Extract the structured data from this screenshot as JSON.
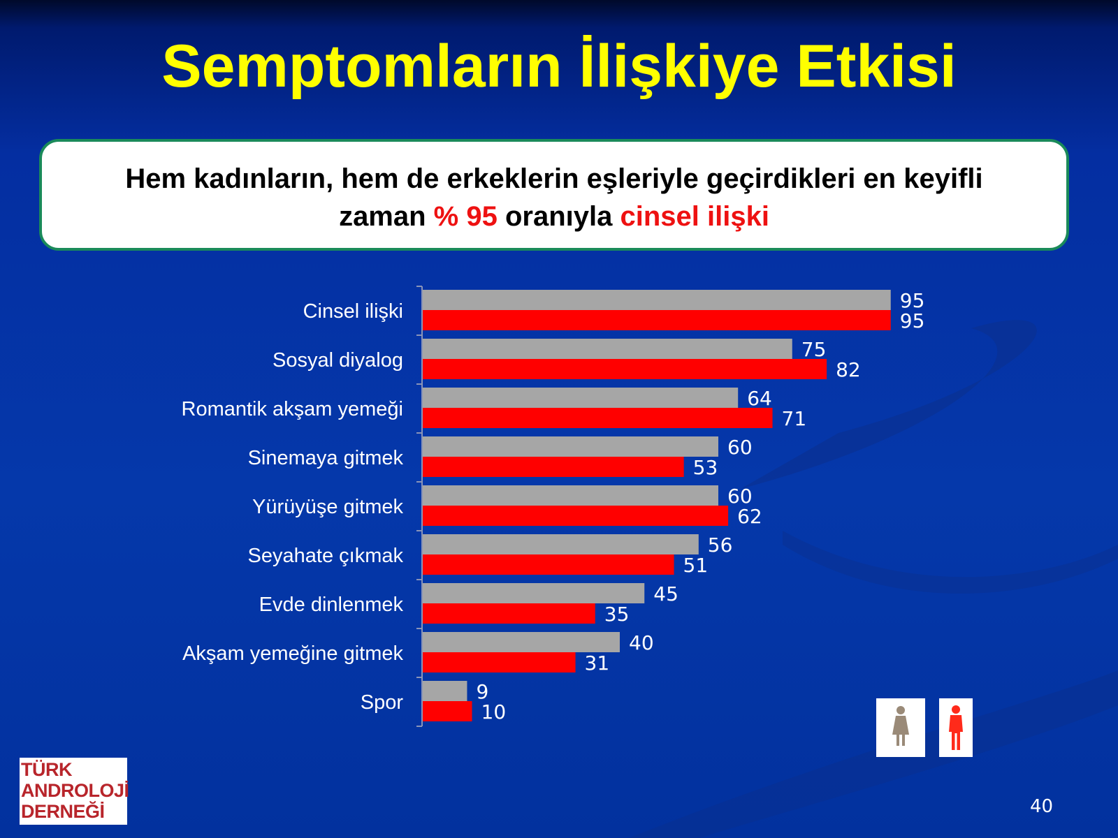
{
  "slide": {
    "title": "Semptomların İlişkiye Etkisi",
    "callout": {
      "line1": "Hem kadınların, hem de erkeklerin eşleriyle geçirdikleri en keyifli",
      "line2_prefix": "zaman ",
      "line2_highlight1": "% 95",
      "line2_middle": " oranıyla ",
      "line2_highlight2": "cinsel ilişki"
    },
    "logo": [
      "TÜRK",
      "ANDROLOJİ",
      "DERNEĞİ"
    ],
    "page_number": "40"
  },
  "colors": {
    "title": "#ffff00",
    "background": "#0538aa",
    "women_bar": "#a6a6a6",
    "men_bar": "#ff0000",
    "highlight_text": "#ee1111",
    "logo_text": "#b8252b"
  },
  "legend": {
    "items": [
      {
        "icon": "woman-icon",
        "color": "#9a8a78"
      },
      {
        "icon": "man-icon",
        "color": "#ff2a1a"
      }
    ]
  },
  "chart_data": {
    "type": "bar",
    "orientation": "horizontal",
    "categories": [
      "Cinsel ilişki",
      "Sosyal diyalog",
      "Romantik akşam yemeği",
      "Sinemaya gitmek",
      "Yürüyüşe gitmek",
      "Seyahate çıkmak",
      "Evde dinlenmek",
      "Akşam yemeğine gitmek",
      "Spor"
    ],
    "series": [
      {
        "values": [
          95,
          75,
          64,
          60,
          60,
          56,
          45,
          40,
          9
        ],
        "color": "#a6a6a6"
      },
      {
        "values": [
          95,
          82,
          71,
          53,
          62,
          51,
          35,
          31,
          10
        ],
        "color": "#ff0000"
      }
    ],
    "xlim": [
      0,
      100
    ],
    "grid": false,
    "data_labels": true
  }
}
